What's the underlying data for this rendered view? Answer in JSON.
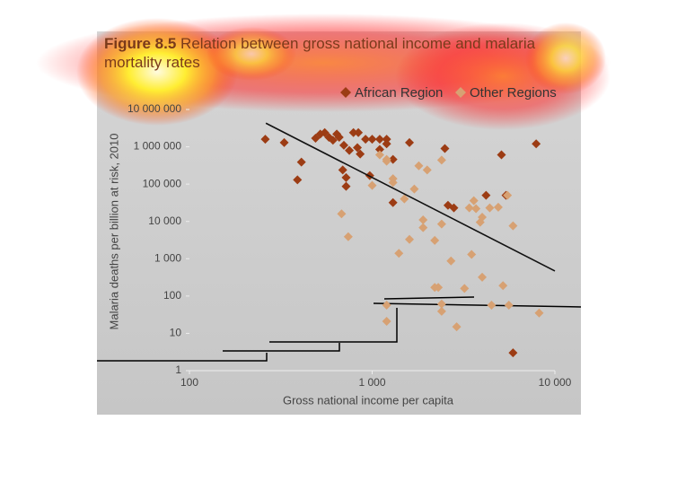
{
  "chart_data": {
    "type": "scatter",
    "figure_label": "Figure 8.5",
    "title": "Relation between gross national income and malaria mortality rates",
    "x_label": "Gross national income per capita",
    "y_label": "Malaria deaths per billion at risk, 2010",
    "xscale": "log",
    "yscale": "log",
    "xlim": [
      100,
      10000
    ],
    "xticks": [
      100,
      {
        "value": 1000,
        "label": "1 000"
      },
      {
        "value": 10000,
        "label": "10 000"
      }
    ],
    "ylim": [
      1,
      10000000
    ],
    "yticks": [
      1,
      10,
      100,
      {
        "value": 1000,
        "label": "1 000"
      },
      {
        "value": 10000,
        "label": "10 000"
      },
      {
        "value": 100000,
        "label": "100 000"
      },
      {
        "value": 1000000,
        "label": "1 000 000"
      },
      {
        "value": 10000000,
        "label": "10 000 000"
      }
    ],
    "grid": false,
    "legend": "top-right",
    "series": [
      {
        "name": "African Region",
        "color": "#9c3c14",
        "x": [
          260,
          330,
          410,
          390,
          490,
          520,
          550,
          580,
          610,
          640,
          660,
          700,
          690,
          720,
          720,
          750,
          790,
          840,
          830,
          860,
          920,
          970,
          1000,
          1100,
          1100,
          1200,
          1200,
          1300,
          1300,
          1600,
          2500,
          2600,
          2800,
          4200,
          5100,
          5400,
          5900,
          7900
        ],
        "values": [
          1600000,
          1300000,
          390000,
          130000,
          1700000,
          2200000,
          2400000,
          1800000,
          1500000,
          2200000,
          1800000,
          1100000,
          240000,
          150000,
          87000,
          800000,
          2400000,
          2400000,
          950000,
          640000,
          1600000,
          170000,
          1600000,
          850000,
          1600000,
          1600000,
          1200000,
          460000,
          32000,
          1300000,
          900000,
          27000,
          23000,
          50000,
          610000,
          50000,
          3,
          1200000
        ]
      },
      {
        "name": "Other Regions",
        "color": "#d7a173",
        "x": [
          680,
          740,
          1000,
          1100,
          1200,
          1200,
          1300,
          1300,
          1400,
          1500,
          1600,
          1700,
          1800,
          1900,
          1900,
          2000,
          2200,
          2300,
          2400,
          2400,
          2400,
          2700,
          2900,
          3200,
          3400,
          3500,
          3600,
          3700,
          3900,
          4000,
          4000,
          4400,
          4500,
          4900,
          5200,
          5500,
          5600,
          5900,
          8200,
          1200,
          1200,
          2400,
          2200
        ],
        "values": [
          16000,
          3900,
          92000,
          610000,
          460000,
          410000,
          110000,
          140000,
          1400,
          40000,
          3300,
          74000,
          310000,
          6800,
          11000,
          240000,
          3100,
          170,
          8500,
          61,
          440000,
          870,
          15,
          160,
          23000,
          1300,
          36000,
          22000,
          9500,
          13000,
          320,
          23000,
          57,
          24000,
          190,
          50000,
          57,
          7600,
          35,
          57,
          21,
          39,
          170
        ]
      }
    ],
    "trend_line": {
      "x": [
        262,
        10000
      ],
      "values": [
        4300000,
        470
      ]
    }
  }
}
